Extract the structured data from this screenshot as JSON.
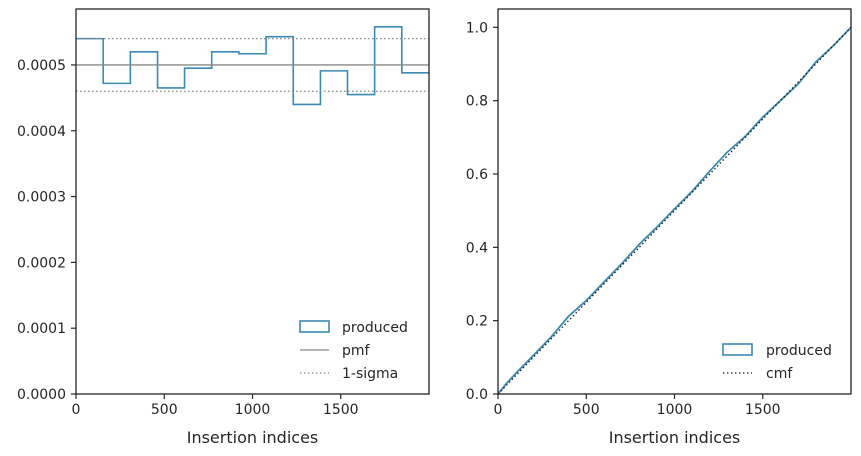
{
  "chart_data": [
    {
      "type": "histogram-step",
      "xlabel": "Insertion indices",
      "ylabel": "",
      "xlim": [
        0,
        2000
      ],
      "ylim": [
        0,
        0.000585
      ],
      "x_ticks": [
        0,
        500,
        1000,
        1500
      ],
      "x_tick_labels": [
        "0",
        "500",
        "1000",
        "1500"
      ],
      "y_ticks": [
        0,
        0.0001,
        0.0002,
        0.0003,
        0.0004,
        0.0005
      ],
      "y_tick_labels": [
        "0.0000",
        "0.0001",
        "0.0002",
        "0.0003",
        "0.0004",
        "0.0005"
      ],
      "bin_edges": [
        0,
        154,
        308,
        462,
        615,
        769,
        923,
        1077,
        1231,
        1385,
        1538,
        1692,
        1846,
        2000
      ],
      "series": [
        {
          "name": "produced",
          "kind": "step",
          "color": "#3a8bb4",
          "values": [
            0.00054,
            0.000472,
            0.00052,
            0.000465,
            0.000495,
            0.00052,
            0.000517,
            0.000543,
            0.00044,
            0.000491,
            0.000455,
            0.000558,
            0.000488
          ]
        },
        {
          "name": "pmf",
          "kind": "hline",
          "color": "#888888",
          "y": 0.0005
        },
        {
          "name": "1-sigma",
          "kind": "hline-dotted",
          "color": "#888888",
          "y": [
            0.00046,
            0.00054
          ]
        }
      ],
      "legend": {
        "placement": "lower-right",
        "entries": [
          {
            "label": "produced",
            "style": "patch",
            "color": "#3a8bb4"
          },
          {
            "label": "pmf",
            "style": "line",
            "color": "#888888"
          },
          {
            "label": "1-sigma",
            "style": "dotted",
            "color": "#888888"
          }
        ]
      },
      "grid": false
    },
    {
      "type": "line",
      "xlabel": "Insertion indices",
      "ylabel": "",
      "xlim": [
        0,
        2000
      ],
      "ylim": [
        0,
        1.05
      ],
      "x_ticks": [
        0,
        500,
        1000,
        1500
      ],
      "x_tick_labels": [
        "0",
        "500",
        "1000",
        "1500"
      ],
      "y_ticks": [
        0,
        0.2,
        0.4,
        0.6,
        0.8,
        1.0
      ],
      "y_tick_labels": [
        "0.0",
        "0.2",
        "0.4",
        "0.6",
        "0.8",
        "1.0"
      ],
      "series": [
        {
          "name": "produced",
          "kind": "line",
          "color": "#3a8bb4",
          "x": [
            0,
            50,
            100,
            200,
            300,
            400,
            500,
            600,
            700,
            800,
            900,
            1000,
            1100,
            1200,
            1300,
            1400,
            1500,
            1600,
            1700,
            1800,
            1900,
            2000
          ],
          "y": [
            0,
            0.03,
            0.056,
            0.105,
            0.155,
            0.212,
            0.255,
            0.305,
            0.355,
            0.408,
            0.455,
            0.505,
            0.553,
            0.608,
            0.66,
            0.702,
            0.755,
            0.8,
            0.845,
            0.905,
            0.95,
            1.0
          ]
        },
        {
          "name": "cmf",
          "kind": "dotted",
          "color": "#1a1a1a",
          "x": [
            0,
            2000
          ],
          "y": [
            0,
            1.0
          ]
        }
      ],
      "legend": {
        "placement": "lower-right",
        "entries": [
          {
            "label": "produced",
            "style": "patch",
            "color": "#3a8bb4"
          },
          {
            "label": "cmf",
            "style": "dotted",
            "color": "#1a1a1a"
          }
        ]
      },
      "grid": false
    }
  ]
}
